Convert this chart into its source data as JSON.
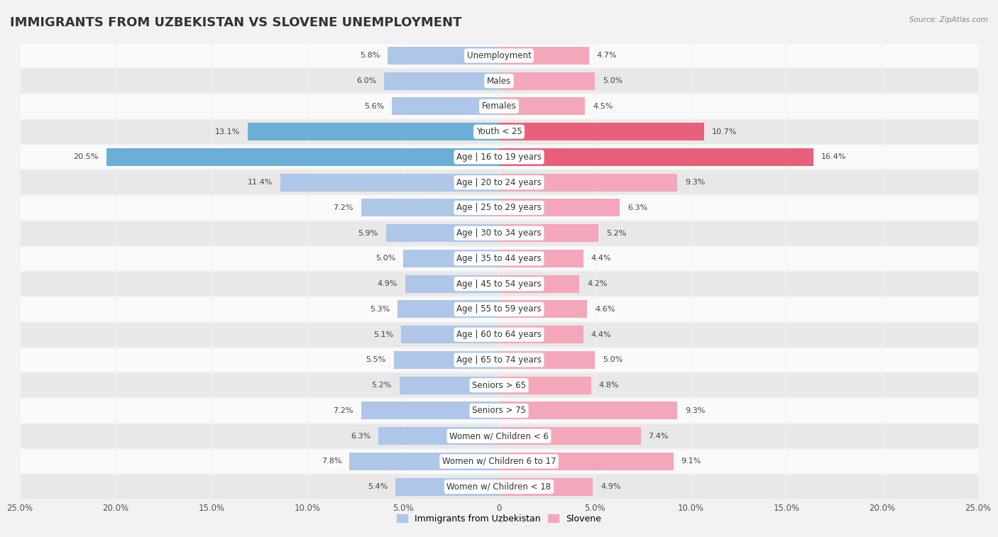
{
  "title": "IMMIGRANTS FROM UZBEKISTAN VS SLOVENE UNEMPLOYMENT",
  "source": "Source: ZipAtlas.com",
  "categories": [
    "Unemployment",
    "Males",
    "Females",
    "Youth < 25",
    "Age | 16 to 19 years",
    "Age | 20 to 24 years",
    "Age | 25 to 29 years",
    "Age | 30 to 34 years",
    "Age | 35 to 44 years",
    "Age | 45 to 54 years",
    "Age | 55 to 59 years",
    "Age | 60 to 64 years",
    "Age | 65 to 74 years",
    "Seniors > 65",
    "Seniors > 75",
    "Women w/ Children < 6",
    "Women w/ Children 6 to 17",
    "Women w/ Children < 18"
  ],
  "left_values": [
    5.8,
    6.0,
    5.6,
    13.1,
    20.5,
    11.4,
    7.2,
    5.9,
    5.0,
    4.9,
    5.3,
    5.1,
    5.5,
    5.2,
    7.2,
    6.3,
    7.8,
    5.4
  ],
  "right_values": [
    4.7,
    5.0,
    4.5,
    10.7,
    16.4,
    9.3,
    6.3,
    5.2,
    4.4,
    4.2,
    4.6,
    4.4,
    5.0,
    4.8,
    9.3,
    7.4,
    9.1,
    4.9
  ],
  "left_color": "#aec6e8",
  "right_color": "#f4a7ba",
  "left_label": "Immigrants from Uzbekistan",
  "right_label": "Slovene",
  "bar_height": 0.7,
  "xlim": 25.0,
  "bg_color": "#f2f2f2",
  "row_colors": [
    "#fafafa",
    "#e8e8e8"
  ],
  "title_fontsize": 13,
  "label_fontsize": 8.5,
  "value_fontsize": 8,
  "axis_fontsize": 8.5,
  "legend_fontsize": 9,
  "highlight_rows": [
    3,
    4
  ],
  "highlight_left_color": "#6baed6",
  "highlight_right_color": "#e8607a",
  "label_bg_color": "#ffffff"
}
